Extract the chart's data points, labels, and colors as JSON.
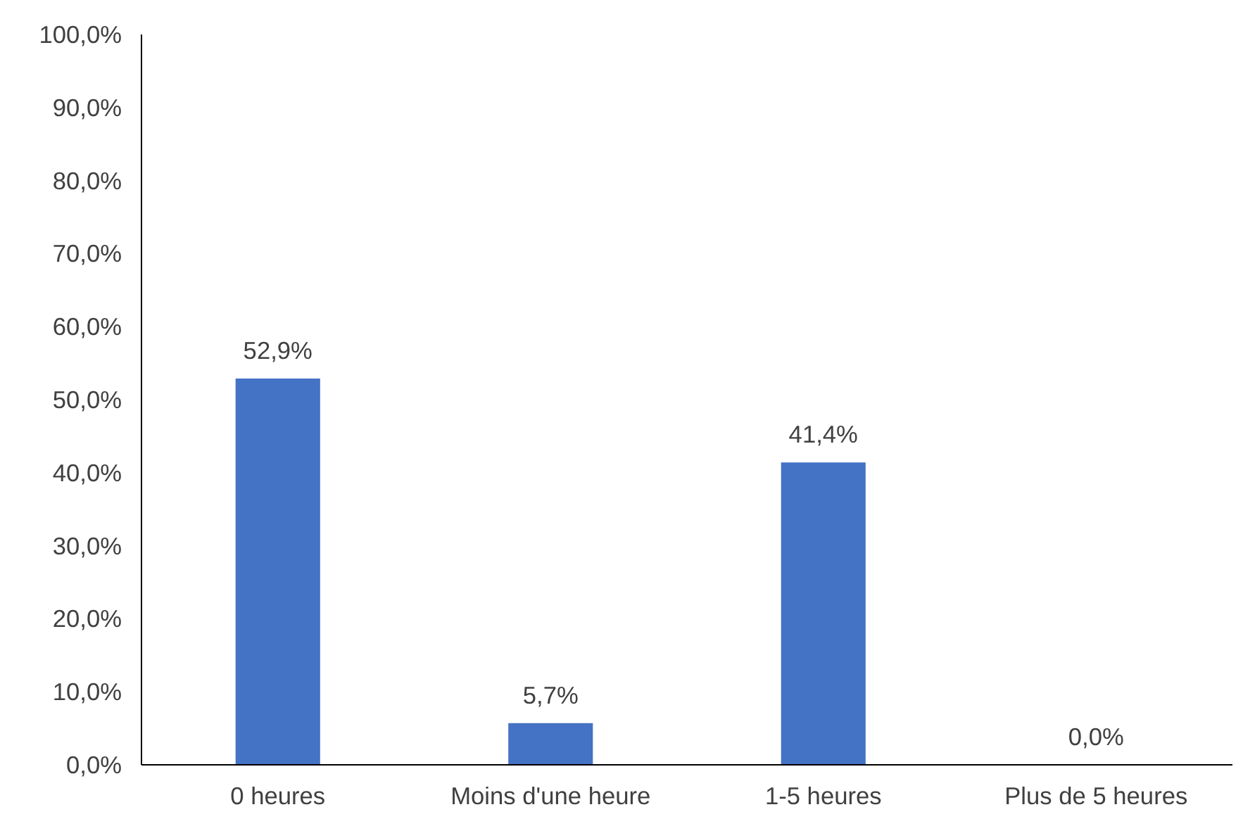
{
  "chart_data": {
    "type": "bar",
    "categories": [
      "0 heures",
      "Moins d'une heure",
      "1-5 heures",
      "Plus de 5 heures"
    ],
    "values": [
      52.9,
      5.7,
      41.4,
      0.0
    ],
    "color": "#4472c4",
    "value_labels": [
      "52,9%",
      "5,7%",
      "41,4%",
      "0,0%"
    ],
    "ylim": [
      0,
      100
    ],
    "yticks": [
      {
        "value": 0,
        "label": "0,0%"
      },
      {
        "value": 10,
        "label": "10,0%"
      },
      {
        "value": 20,
        "label": "20,0%"
      },
      {
        "value": 30,
        "label": "30,0%"
      },
      {
        "value": 40,
        "label": "40,0%"
      },
      {
        "value": 50,
        "label": "50,0%"
      },
      {
        "value": 60,
        "label": "60,0%"
      },
      {
        "value": 70,
        "label": "70,0%"
      },
      {
        "value": 80,
        "label": "80,0%"
      },
      {
        "value": 90,
        "label": "90,0%"
      },
      {
        "value": 100,
        "label": "100,0%"
      }
    ],
    "grid": false
  }
}
